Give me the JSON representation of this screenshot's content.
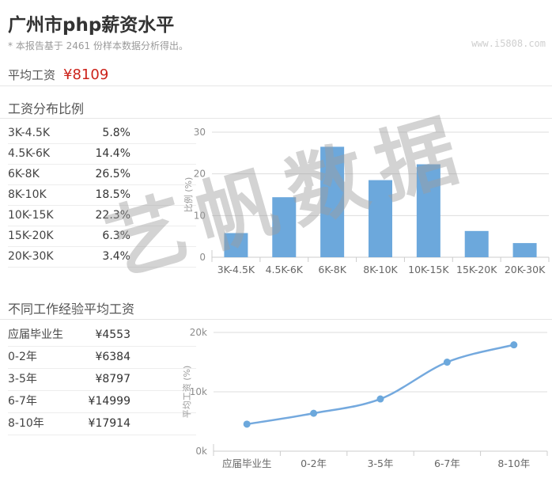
{
  "page": {
    "title": "广州市php薪资水平",
    "subtitle": "* 本报告基于 2461 份样本数据分析得出。",
    "site_watermark": "www.i5808.com",
    "diagonal_watermark": "艺帆数据",
    "colors": {
      "accent_red": "#cc221a",
      "bar_blue": "#6ca8dc",
      "line_blue": "#74a9de",
      "marker_blue": "#6ca8dc",
      "grid_gray": "#dddddd",
      "axis_gray": "#cccccc"
    }
  },
  "average": {
    "label": "平均工资",
    "value": "¥8109"
  },
  "distribution": {
    "heading": "工资分布比例",
    "rows": [
      {
        "label": "3K-4.5K",
        "value": "5.8%"
      },
      {
        "label": "4.5K-6K",
        "value": "14.4%"
      },
      {
        "label": "6K-8K",
        "value": "26.5%"
      },
      {
        "label": "8K-10K",
        "value": "18.5%"
      },
      {
        "label": "10K-15K",
        "value": "22.3%"
      },
      {
        "label": "15K-20K",
        "value": "6.3%"
      },
      {
        "label": "20K-30K",
        "value": "3.4%"
      }
    ]
  },
  "experience": {
    "heading": "不同工作经验平均工资",
    "rows": [
      {
        "label": "应届毕业生",
        "value": "¥4553"
      },
      {
        "label": "0-2年",
        "value": "¥6384"
      },
      {
        "label": "3-5年",
        "value": "¥8797"
      },
      {
        "label": "6-7年",
        "value": "¥14999"
      },
      {
        "label": "8-10年",
        "value": "¥17914"
      }
    ]
  },
  "chart_data": [
    {
      "type": "bar",
      "title": "工资分布比例",
      "categories": [
        "3K-4.5K",
        "4.5K-6K",
        "6K-8K",
        "8K-10K",
        "10K-15K",
        "15K-20K",
        "20K-30K"
      ],
      "values": [
        5.8,
        14.4,
        26.5,
        18.5,
        22.3,
        6.3,
        3.4
      ],
      "xlabel": "",
      "ylabel": "比例 (%)",
      "ylim": [
        0,
        30
      ],
      "ytick_values": [
        0,
        10,
        20,
        30
      ],
      "ytick_labels": [
        "0",
        "10",
        "20",
        "30"
      ],
      "grid": true,
      "legend": "none"
    },
    {
      "type": "line",
      "title": "不同工作经验平均工资",
      "categories": [
        "应届毕业生",
        "0-2年",
        "3-5年",
        "6-7年",
        "8-10年"
      ],
      "values": [
        4553,
        6384,
        8797,
        14999,
        17914
      ],
      "xlabel": "",
      "ylabel": "平均工资 (%)",
      "ylim": [
        0,
        20000
      ],
      "ytick_values": [
        0,
        10000,
        20000
      ],
      "ytick_labels": [
        "0k",
        "10k",
        "20k"
      ],
      "grid": true,
      "legend": "none",
      "smooth": true,
      "markers": true
    }
  ]
}
